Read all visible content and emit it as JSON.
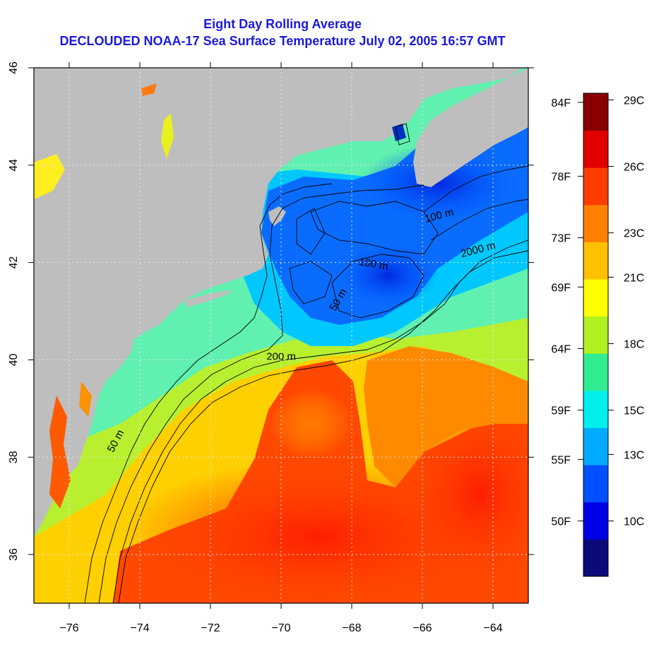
{
  "title": "Eight Day Rolling Average",
  "subtitle": "DECLOUDED NOAA-17 Sea Surface Temperature July 02, 2005 16:57 GMT",
  "map": {
    "lon_range": [
      -77,
      -63
    ],
    "lat_range": [
      35,
      46
    ],
    "lon_ticks": [
      -76,
      -74,
      -72,
      -70,
      -68,
      -66,
      -64
    ],
    "lat_ticks": [
      36,
      38,
      40,
      42,
      44,
      46
    ],
    "lon_tick_labels": [
      "−76",
      "−74",
      "−72",
      "−70",
      "−68",
      "−66",
      "−64"
    ],
    "lat_tick_labels": [
      "36",
      "38",
      "40",
      "42",
      "44",
      "46"
    ],
    "grid": "dotted",
    "land_color": "#bebebe",
    "contour_labels": [
      {
        "text": "50 m",
        "lon": -74.6,
        "lat": 38.3,
        "angle": -62
      },
      {
        "text": "200 m",
        "lon": -70.0,
        "lat": 40.0,
        "angle": 0
      },
      {
        "text": "50 m",
        "lon": -68.3,
        "lat": 41.2,
        "angle": -60
      },
      {
        "text": "100 m",
        "lon": -67.4,
        "lat": 41.9,
        "angle": 10
      },
      {
        "text": "100 m",
        "lon": -65.5,
        "lat": 42.9,
        "angle": -15
      },
      {
        "text": "2000 m",
        "lon": -64.4,
        "lat": 42.2,
        "angle": -15
      }
    ]
  },
  "colorbar": {
    "colors": [
      "#0a0a7a",
      "#0000e6",
      "#0050ff",
      "#00aaff",
      "#00eeee",
      "#30ee90",
      "#b0f020",
      "#ffff00",
      "#ffc000",
      "#ff8000",
      "#ff3c00",
      "#e00000",
      "#8a0000"
    ],
    "min_c": 7.5,
    "max_c": 29.3,
    "celsius_ticks": [
      {
        "label": "29C",
        "value": 29
      },
      {
        "label": "26C",
        "value": 26
      },
      {
        "label": "23C",
        "value": 23
      },
      {
        "label": "21C",
        "value": 21
      },
      {
        "label": "18C",
        "value": 18
      },
      {
        "label": "15C",
        "value": 15
      },
      {
        "label": "13C",
        "value": 13
      },
      {
        "label": "10C",
        "value": 10
      }
    ],
    "fahrenheit_ticks": [
      {
        "label": "84F",
        "value": 84
      },
      {
        "label": "78F",
        "value": 78
      },
      {
        "label": "73F",
        "value": 73
      },
      {
        "label": "69F",
        "value": 69
      },
      {
        "label": "64F",
        "value": 64
      },
      {
        "label": "59F",
        "value": 59
      },
      {
        "label": "55F",
        "value": 55
      },
      {
        "label": "50F",
        "value": 50
      }
    ]
  }
}
